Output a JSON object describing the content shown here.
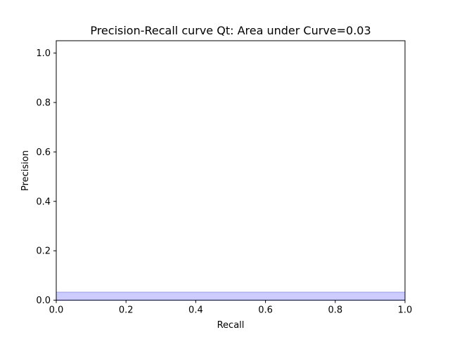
{
  "chart_data": {
    "type": "area",
    "title": "Precision-Recall curve Qt: Area under Curve=0.03",
    "xlabel": "Recall",
    "ylabel": "Precision",
    "xlim": [
      0.0,
      1.0
    ],
    "ylim": [
      0.0,
      1.05
    ],
    "xticks": [
      0.0,
      0.2,
      0.4,
      0.6,
      0.8,
      1.0
    ],
    "xtick_labels": [
      "0.0",
      "0.2",
      "0.4",
      "0.6",
      "0.8",
      "1.0"
    ],
    "yticks": [
      0.0,
      0.2,
      0.4,
      0.6,
      0.8,
      1.0
    ],
    "ytick_labels": [
      "0.0",
      "0.2",
      "0.4",
      "0.6",
      "0.8",
      "1.0"
    ],
    "grid": false,
    "series": [
      {
        "x": [
          0.0,
          1.0
        ],
        "y": [
          0.033,
          0.033
        ],
        "step": "post",
        "line_color": "#0000ff",
        "fill_color": "#0000ff",
        "line_alpha": 0.2,
        "fill_alpha": 0.2
      }
    ]
  }
}
